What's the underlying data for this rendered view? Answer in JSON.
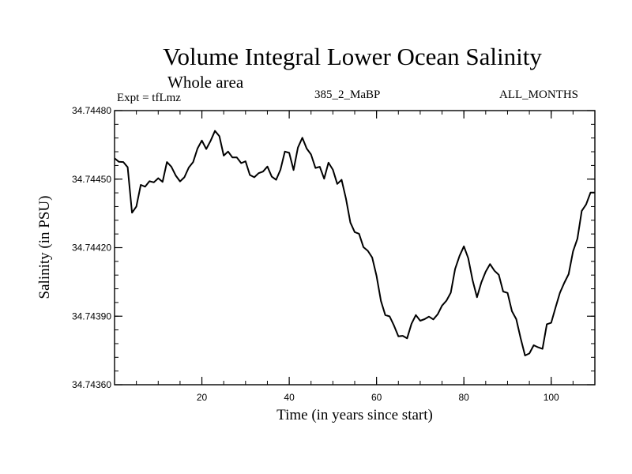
{
  "chart_data": {
    "type": "line",
    "title": "Volume Integral Lower Ocean Salinity",
    "subtitle": "Whole area",
    "annotations": {
      "experiment": "Expt = tfLmz",
      "run": "385_2_MaBP",
      "months": "ALL_MONTHS"
    },
    "xlabel": "Time (in years since start)",
    "ylabel": "Salinity (in PSU)",
    "xlim": [
      0,
      110
    ],
    "ylim": [
      34.7436,
      34.7448
    ],
    "x_major_ticks": [
      20,
      40,
      60,
      80,
      100
    ],
    "x_tick_labels": [
      "20",
      "40",
      "60",
      "80",
      "100"
    ],
    "y_major_ticks": [
      34.7436,
      34.7439,
      34.7442,
      34.7445,
      34.7448
    ],
    "y_tick_labels": [
      "34.74360",
      "34.74390",
      "34.74420",
      "34.74450",
      "34.74480"
    ],
    "line_color": "#000000",
    "series": [
      {
        "name": "salinity",
        "x": [
          0,
          1,
          2,
          3,
          4,
          5,
          6,
          7,
          8,
          9,
          10,
          11,
          12,
          13,
          14,
          15,
          16,
          17,
          18,
          19,
          20,
          21,
          22,
          23,
          24,
          25,
          26,
          27,
          28,
          29,
          30,
          31,
          32,
          33,
          34,
          35,
          36,
          37,
          38,
          39,
          40,
          41,
          42,
          43,
          44,
          45,
          46,
          47,
          48,
          49,
          50,
          51,
          52,
          53,
          54,
          55,
          56,
          57,
          58,
          59,
          60,
          61,
          62,
          63,
          64,
          65,
          66,
          67,
          68,
          69,
          70,
          71,
          72,
          73,
          74,
          75,
          76,
          77,
          78,
          79,
          80,
          81,
          82,
          83,
          84,
          85,
          86,
          87,
          88,
          89,
          90,
          91,
          92,
          93,
          94,
          95,
          96,
          97,
          98,
          99,
          100,
          101,
          102,
          103,
          104,
          105,
          106,
          107,
          108,
          109,
          110
        ],
        "values": [
          34.744591,
          34.744576,
          34.744575,
          34.744552,
          34.744353,
          34.74438,
          34.744475,
          34.744467,
          34.744491,
          34.744486,
          34.744504,
          34.744488,
          34.744575,
          34.744554,
          34.744516,
          34.74449,
          34.744508,
          34.744551,
          34.744575,
          34.744634,
          34.744669,
          34.744632,
          34.744668,
          34.744711,
          34.744688,
          34.744603,
          34.744621,
          34.744595,
          34.744595,
          34.74457,
          34.744578,
          34.744518,
          34.744508,
          34.744526,
          34.744533,
          34.744555,
          34.744511,
          34.744497,
          34.744541,
          34.744621,
          34.744615,
          34.74454,
          34.744638,
          34.744681,
          34.744634,
          34.744608,
          34.744549,
          34.744554,
          34.744502,
          34.744572,
          34.744541,
          34.744479,
          34.744497,
          34.744415,
          34.74431,
          34.744268,
          34.744261,
          34.744202,
          34.744186,
          34.744157,
          34.744077,
          34.743967,
          34.743905,
          34.743899,
          34.743859,
          34.743812,
          34.743814,
          34.743803,
          34.743867,
          34.743905,
          34.74388,
          34.743887,
          34.743898,
          34.743886,
          34.743908,
          34.743946,
          34.743968,
          34.744003,
          34.744107,
          34.744164,
          34.744206,
          34.744154,
          34.744058,
          34.743983,
          34.744048,
          34.744095,
          34.744128,
          34.744099,
          34.744081,
          34.744008,
          34.744002,
          34.743922,
          34.743887,
          34.743804,
          34.743728,
          34.743737,
          34.743773,
          34.743764,
          34.743757,
          34.743865,
          34.743871,
          34.743939,
          34.744003,
          34.744046,
          34.744084,
          34.744184,
          34.744239,
          34.744361,
          34.744389,
          34.744441,
          34.744441
        ]
      }
    ]
  }
}
